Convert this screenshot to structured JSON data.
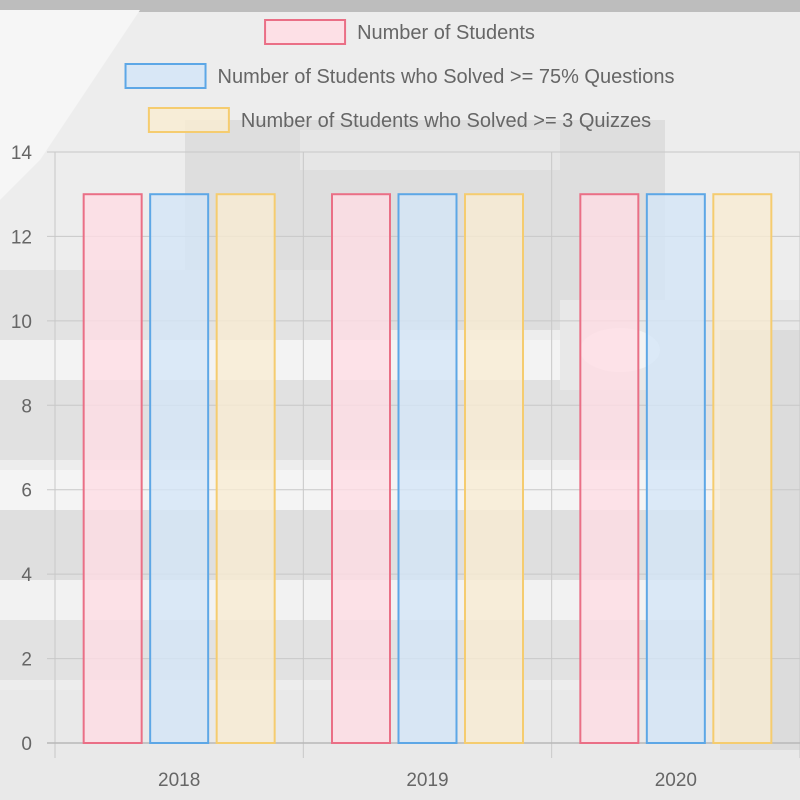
{
  "chart_data": {
    "type": "bar",
    "categories": [
      "2018",
      "2019",
      "2020"
    ],
    "series": [
      {
        "name": "Number of Students",
        "values": [
          13,
          13,
          13
        ],
        "fill": "#ffdde4",
        "border": "#ea6f86"
      },
      {
        "name": "Number of Students who Solved >= 75% Questions",
        "values": [
          13,
          13,
          13
        ],
        "fill": "#d3e5f7",
        "border": "#5da7e6"
      },
      {
        "name": "Number of Students who Solved >= 3 Quizzes",
        "values": [
          13,
          13,
          13
        ],
        "fill": "#f8ecd2",
        "border": "#f5cc6f"
      }
    ],
    "ylim": [
      0,
      14
    ],
    "yticks": [
      "0",
      "2",
      "4",
      "6",
      "8",
      "10",
      "12",
      "14"
    ],
    "grid": true,
    "legend_position": "top"
  }
}
